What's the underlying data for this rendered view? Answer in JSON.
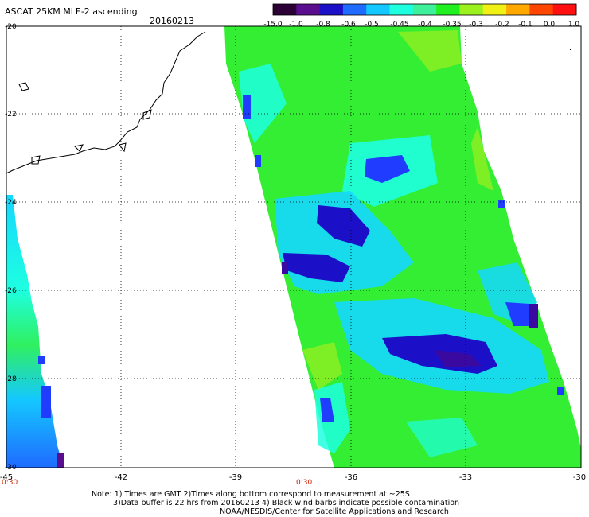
{
  "header": {
    "title": "ASCAT 25KM MLE-2 ascending",
    "date": "20160213"
  },
  "colorbar": {
    "labels": [
      "-15.0",
      "-1.0",
      "-0.8",
      "-0.6",
      "-0.5",
      "-0.45",
      "-0.4",
      "-0.35",
      "-0.3",
      "-0.2",
      "-0.1",
      "0.0",
      "1.0"
    ],
    "colors": [
      "#2a0035",
      "#5a0e8f",
      "#1b10c8",
      "#1f6bff",
      "#14c8ff",
      "#1effe0",
      "#3ef09a",
      "#20f020",
      "#9cf01e",
      "#f0f014",
      "#ffa800",
      "#ff4600",
      "#ff1010"
    ]
  },
  "map": {
    "lat_labels": [
      "-20",
      "-22",
      "-24",
      "-26",
      "-28",
      "-30"
    ],
    "lon_labels": [
      "-45",
      "-42",
      "-39",
      "-36",
      "-33",
      "-30"
    ],
    "time_labels": [
      "0:30",
      "0:30"
    ]
  },
  "footer": {
    "line1": "Note: 1) Times are GMT 2)Times along bottom correspond to measurement at ~25S",
    "line2": "3)Data buffer is 22 hrs from 20160213 4) Black wind barbs indicate possible contamination",
    "line3": "NOAA/NESDIS/Center for Satellite Applications and Research"
  }
}
